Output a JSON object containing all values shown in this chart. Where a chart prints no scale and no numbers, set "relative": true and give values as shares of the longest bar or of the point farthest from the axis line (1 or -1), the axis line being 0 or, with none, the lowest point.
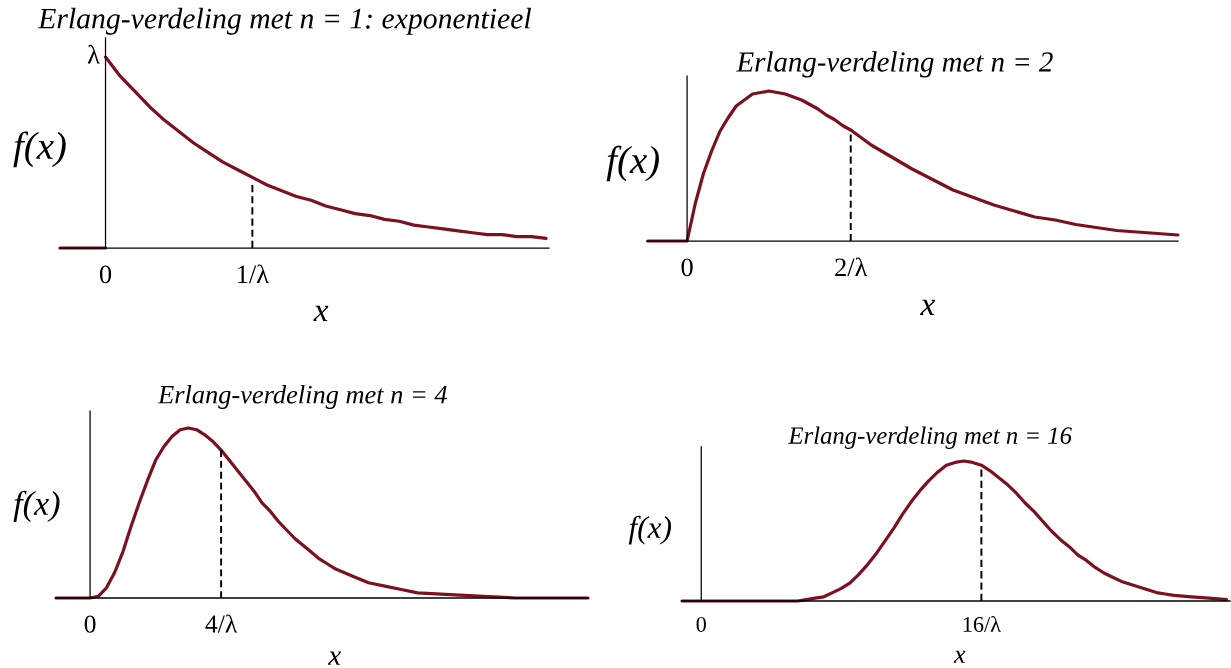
{
  "chart_data": [
    {
      "type": "line",
      "title": "Erlang-verdeling met n = 1: exponentieel",
      "xlabel": "x",
      "ylabel": "f(x)",
      "relative": true,
      "xlim": [
        -0.31,
        3.02
      ],
      "xticks": [
        0,
        {
          "value": 1,
          "label": "1/λ"
        }
      ],
      "annotations": [
        {
          "text": "λ",
          "x": 0,
          "y": 1
        }
      ],
      "series": [
        {
          "color": "#7b1020",
          "x": [
            -0.31,
            0
          ],
          "values": [
            0,
            0
          ]
        },
        {
          "color": "#7b1020",
          "x": [
            0,
            0.1,
            0.2,
            0.3,
            0.4,
            0.5,
            0.6,
            0.7,
            0.8,
            0.9,
            1.0,
            1.1,
            1.2,
            1.3,
            1.4,
            1.5,
            1.6,
            1.7,
            1.8,
            1.9,
            2.0,
            2.1,
            2.2,
            2.3,
            2.4,
            2.5,
            2.6,
            2.7,
            2.8,
            2.9,
            3.0
          ],
          "values": [
            1,
            0.9,
            0.82,
            0.74,
            0.67,
            0.61,
            0.55,
            0.5,
            0.45,
            0.41,
            0.37,
            0.33,
            0.3,
            0.27,
            0.25,
            0.22,
            0.2,
            0.18,
            0.17,
            0.15,
            0.14,
            0.12,
            0.11,
            0.1,
            0.09,
            0.08,
            0.07,
            0.07,
            0.06,
            0.06,
            0.05
          ]
        },
        {
          "color": "#000000",
          "line_style": "dashed",
          "x": [
            1,
            1
          ],
          "values": [
            0,
            0.33
          ]
        }
      ]
    },
    {
      "type": "line",
      "title": "Erlang-verdeling met n = 2",
      "xlabel": "x",
      "ylabel": "f(x)",
      "relative": true,
      "xlim": [
        -0.49,
        6.0
      ],
      "xticks": [
        0,
        {
          "value": 2,
          "label": "2/λ"
        }
      ],
      "series": [
        {
          "color": "#7b1020",
          "x": [
            -0.48,
            0,
            0.1,
            0.2,
            0.3,
            0.4,
            0.5,
            0.6,
            0.7,
            0.8,
            0.9,
            1.0,
            1.1,
            1.2,
            1.3,
            1.4,
            1.5,
            1.6,
            1.7,
            1.8,
            1.9,
            2.0,
            2.25,
            2.5,
            2.75,
            3.0,
            3.25,
            3.5,
            3.75,
            4.0,
            4.25,
            4.5,
            4.75,
            5.0,
            5.25,
            5.5,
            5.75,
            6.0
          ],
          "values": [
            0,
            0,
            0.25,
            0.45,
            0.6,
            0.73,
            0.82,
            0.9,
            0.94,
            0.98,
            0.99,
            1,
            0.99,
            0.98,
            0.96,
            0.94,
            0.91,
            0.88,
            0.84,
            0.81,
            0.77,
            0.74,
            0.64,
            0.56,
            0.48,
            0.41,
            0.34,
            0.29,
            0.24,
            0.2,
            0.16,
            0.14,
            0.11,
            0.09,
            0.07,
            0.06,
            0.05,
            0.04
          ]
        },
        {
          "color": "#000000",
          "line_style": "dashed",
          "x": [
            2,
            2
          ],
          "values": [
            0,
            0.71
          ]
        }
      ]
    },
    {
      "type": "line",
      "title": "Erlang-verdeling met n = 4",
      "xlabel": "x",
      "ylabel": "f(x)",
      "relative": true,
      "xlim": [
        -1.04,
        15.2
      ],
      "xticks": [
        0,
        {
          "value": 4,
          "label": "4/λ"
        }
      ],
      "series": [
        {
          "color": "#7b1020",
          "x": [
            -1.04,
            0,
            0.25,
            0.5,
            0.75,
            1.0,
            1.25,
            1.5,
            1.75,
            2.0,
            2.25,
            2.5,
            2.75,
            3.0,
            3.25,
            3.5,
            3.75,
            4.0,
            4.25,
            4.5,
            4.75,
            5.0,
            5.25,
            5.5,
            5.75,
            6.0,
            6.25,
            6.5,
            6.75,
            7.0,
            7.25,
            7.5,
            7.75,
            8.0,
            8.5,
            9.0,
            9.5,
            10.0,
            11.0,
            12.0,
            13.0,
            15.2
          ],
          "values": [
            0,
            0,
            0.01,
            0.06,
            0.15,
            0.27,
            0.42,
            0.56,
            0.69,
            0.81,
            0.89,
            0.95,
            0.99,
            1,
            0.99,
            0.96,
            0.92,
            0.87,
            0.81,
            0.75,
            0.69,
            0.63,
            0.56,
            0.51,
            0.45,
            0.4,
            0.35,
            0.31,
            0.27,
            0.23,
            0.2,
            0.17,
            0.15,
            0.13,
            0.09,
            0.07,
            0.05,
            0.03,
            0.02,
            0.01,
            0,
            0
          ]
        },
        {
          "color": "#000000",
          "line_style": "dashed",
          "x": [
            4,
            4
          ],
          "values": [
            0,
            0.87
          ]
        }
      ]
    },
    {
      "type": "line",
      "title": "Erlang-verdeling met n = 16",
      "xlabel": "x",
      "ylabel": "f(x)",
      "relative": true,
      "xlim": [
        -1.1,
        30.2
      ],
      "xticks": [
        0,
        {
          "value": 16,
          "label": "16/λ"
        }
      ],
      "series": [
        {
          "color": "#7b1020",
          "x": [
            -1.1,
            0,
            4,
            5,
            5.5,
            6,
            6.5,
            7,
            7.5,
            8,
            8.5,
            9,
            9.5,
            10,
            10.5,
            11,
            11.5,
            12,
            12.5,
            13,
            13.5,
            14,
            14.5,
            15,
            15.5,
            16,
            16.5,
            17,
            17.5,
            18,
            18.5,
            19,
            19.5,
            20,
            20.5,
            21,
            21.5,
            22,
            22.5,
            23,
            23.5,
            24,
            24.5,
            25,
            25.5,
            26,
            26.5,
            27,
            28,
            29,
            30
          ],
          "values": [
            0,
            0,
            0,
            0,
            0,
            0.01,
            0.02,
            0.03,
            0.06,
            0.09,
            0.13,
            0.19,
            0.26,
            0.34,
            0.43,
            0.52,
            0.62,
            0.71,
            0.79,
            0.86,
            0.92,
            0.97,
            0.99,
            1,
            0.99,
            0.97,
            0.93,
            0.88,
            0.83,
            0.77,
            0.7,
            0.64,
            0.57,
            0.5,
            0.44,
            0.39,
            0.33,
            0.29,
            0.24,
            0.2,
            0.17,
            0.14,
            0.12,
            0.1,
            0.08,
            0.06,
            0.05,
            0.04,
            0.03,
            0.02,
            0.01
          ]
        },
        {
          "color": "#000000",
          "line_style": "dashed",
          "x": [
            16,
            16
          ],
          "values": [
            0,
            0.94
          ]
        }
      ]
    }
  ]
}
